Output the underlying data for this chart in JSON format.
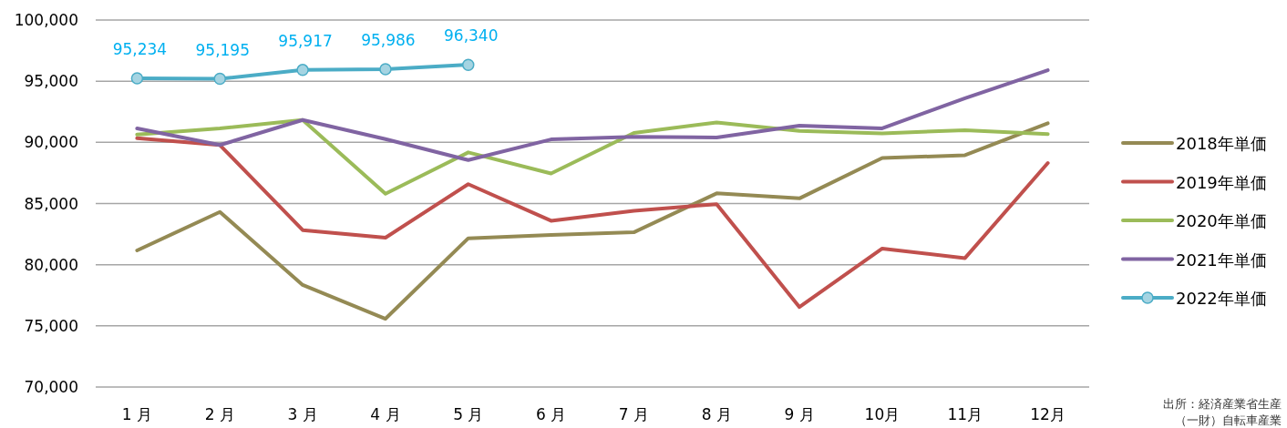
{
  "chart_data": {
    "type": "line",
    "categories": [
      "1 月",
      "2 月",
      "3 月",
      "4 月",
      "5 月",
      "6 月",
      "7 月",
      "8 月",
      "9 月",
      "10月",
      "11月",
      "12月"
    ],
    "series": [
      {
        "name": "2018年単価",
        "color": "#948a54",
        "values": [
          81170,
          84310,
          78340,
          75580,
          82160,
          82430,
          82650,
          85830,
          85420,
          88720,
          88950,
          91560
        ]
      },
      {
        "name": "2019年単価",
        "color": "#c0504d",
        "values": [
          90340,
          89780,
          82830,
          82210,
          86580,
          83590,
          84410,
          84950,
          76540,
          81320,
          80540,
          88310
        ]
      },
      {
        "name": "2020年単価",
        "color": "#9bbb59",
        "values": [
          90640,
          91140,
          91830,
          85800,
          89180,
          87460,
          90770,
          91630,
          90930,
          90740,
          90990,
          90680
        ]
      },
      {
        "name": "2021年単価",
        "color": "#8064a2",
        "values": [
          91140,
          89780,
          91830,
          90270,
          88550,
          90240,
          90460,
          90400,
          91370,
          91150,
          93600,
          95900
        ]
      },
      {
        "name": "2022年単価",
        "color": "#4bacc6",
        "marker": "circle",
        "values": [
          95234,
          95195,
          95917,
          95986,
          96340,
          null,
          null,
          null,
          null,
          null,
          null,
          null
        ],
        "value_labels": [
          "95,234",
          "95,195",
          "95,917",
          "95,986",
          "96,340",
          null,
          null,
          null,
          null,
          null,
          null,
          null
        ]
      }
    ],
    "ylim": [
      70000,
      100000
    ],
    "yticks": [
      {
        "value": 70000,
        "label": "70,000"
      },
      {
        "value": 75000,
        "label": "75,000"
      },
      {
        "value": 80000,
        "label": "80,000"
      },
      {
        "value": 85000,
        "label": "85,000"
      },
      {
        "value": 90000,
        "label": "90,000"
      },
      {
        "value": 95000,
        "label": "95,000"
      },
      {
        "value": 100000,
        "label": "100,000"
      }
    ],
    "grid": "y",
    "legend": "right",
    "annotations": [
      "出所：経済産業省生産",
      "（一財）自転車産業"
    ]
  }
}
